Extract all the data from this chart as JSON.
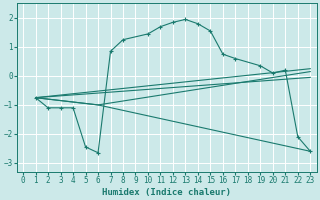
{
  "xlabel": "Humidex (Indice chaleur)",
  "ylabel": "",
  "background_color": "#cce9e9",
  "grid_color": "#ffffff",
  "line_color": "#1a7a6e",
  "xlim": [
    -0.5,
    23.5
  ],
  "ylim": [
    -3.3,
    2.5
  ],
  "xticks": [
    0,
    1,
    2,
    3,
    4,
    5,
    6,
    7,
    8,
    9,
    10,
    11,
    12,
    13,
    14,
    15,
    16,
    17,
    18,
    19,
    20,
    21,
    22,
    23
  ],
  "yticks": [
    -3,
    -2,
    -1,
    0,
    1,
    2
  ],
  "line1_x": [
    1,
    2,
    3,
    4,
    5,
    6,
    7,
    8,
    10,
    11,
    12,
    13,
    14,
    15,
    16,
    17,
    19,
    20,
    21,
    22,
    23
  ],
  "line1_y": [
    -0.75,
    -1.1,
    -1.1,
    -1.1,
    -2.45,
    -2.65,
    0.85,
    1.25,
    1.45,
    1.7,
    1.85,
    1.95,
    1.8,
    1.55,
    0.75,
    0.6,
    0.35,
    0.1,
    0.2,
    -2.1,
    -2.6
  ],
  "line2_x": [
    1,
    6,
    23
  ],
  "line2_y": [
    -0.75,
    -1.0,
    0.15
  ],
  "line3_x": [
    1,
    6,
    23
  ],
  "line3_y": [
    -0.75,
    -1.0,
    -2.6
  ],
  "line4_x": [
    1,
    23
  ],
  "line4_y": [
    -0.75,
    0.25
  ],
  "line5_x": [
    1,
    23
  ],
  "line5_y": [
    -0.75,
    -0.05
  ],
  "tick_fontsize": 5.5,
  "xlabel_fontsize": 6.5
}
